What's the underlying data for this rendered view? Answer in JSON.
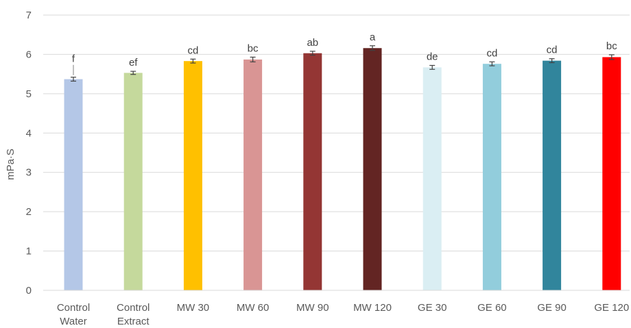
{
  "chart_data": {
    "type": "bar",
    "title": "",
    "xlabel": "",
    "ylabel": "mPa·S",
    "ylim": [
      0,
      7
    ],
    "yticks": [
      0,
      1,
      2,
      3,
      4,
      5,
      6,
      7
    ],
    "grid": true,
    "legend": "none",
    "categories": [
      [
        "Control",
        "Water"
      ],
      [
        "Control",
        "Extract"
      ],
      [
        "MW 30"
      ],
      [
        "MW 60"
      ],
      [
        "MW 90"
      ],
      [
        "MW 120"
      ],
      [
        "GE 30"
      ],
      [
        "GE 60"
      ],
      [
        "GE 90"
      ],
      [
        "GE 120"
      ]
    ],
    "values": [
      5.37,
      5.53,
      5.83,
      5.87,
      6.03,
      6.16,
      5.67,
      5.76,
      5.84,
      5.93
    ],
    "errors": [
      0.05,
      0.04,
      0.05,
      0.06,
      0.05,
      0.06,
      0.05,
      0.05,
      0.05,
      0.06
    ],
    "significance_letters": [
      "f",
      "ef",
      "cd",
      "bc",
      "ab",
      "a",
      "de",
      "cd",
      "cd",
      "bc"
    ],
    "colors": [
      "#b4c7e7",
      "#c5d99c",
      "#ffc000",
      "#d99594",
      "#943634",
      "#632523",
      "#daeef3",
      "#92cddc",
      "#31859c",
      "#ff0000"
    ]
  }
}
